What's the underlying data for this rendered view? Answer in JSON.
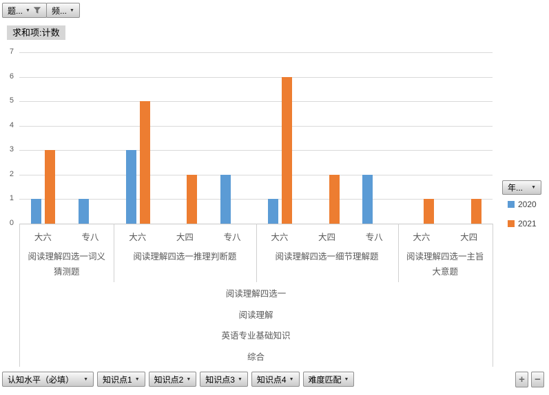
{
  "field_buttons": {
    "axis_filter_1": "题...",
    "axis_filter_2": "频...",
    "value_label": "求和项:计数",
    "legend_button": "年...",
    "bottom": [
      "认知水平（必填）",
      "知识点1",
      "知识点2",
      "知识点3",
      "知识点4",
      "难度匹配"
    ],
    "expand_label": "+",
    "collapse_label": "−"
  },
  "legend": {
    "entries": [
      {
        "label": "2020",
        "color": "#5B9BD5"
      },
      {
        "label": "2021",
        "color": "#ED7D31"
      }
    ]
  },
  "colors": {
    "series_2020": "#5B9BD5",
    "series_2021": "#ED7D31",
    "gridline": "#D9D9D9",
    "axis_text": "#595959"
  },
  "chart_data": {
    "type": "bar",
    "title": "求和项:计数",
    "xlabel": "",
    "ylabel": "",
    "ylim": [
      0,
      7
    ],
    "yticks": [
      0,
      1,
      2,
      3,
      4,
      5,
      6,
      7
    ],
    "grid": true,
    "legend_position": "right",
    "categories": [
      "大六",
      "专八",
      "大六",
      "大四",
      "专八",
      "大六",
      "大四",
      "专八",
      "大六",
      "大四"
    ],
    "series": [
      {
        "name": "2020",
        "color": "#5B9BD5",
        "values": [
          1,
          1,
          3,
          null,
          2,
          1,
          null,
          2,
          null,
          null
        ]
      },
      {
        "name": "2021",
        "color": "#ED7D31",
        "values": [
          3,
          null,
          5,
          2,
          null,
          6,
          2,
          null,
          1,
          1
        ]
      }
    ],
    "groups": [
      {
        "label": "阅读理解四选一词义猜测题",
        "span": 2
      },
      {
        "label": "阅读理解四选一推理判断题",
        "span": 3
      },
      {
        "label": "阅读理解四选一细节理解题",
        "span": 3
      },
      {
        "label": "阅读理解四选一主旨大意题",
        "span": 2
      }
    ],
    "outer_levels": [
      "阅读理解四选一",
      "阅读理解",
      "英语专业基础知识",
      "综合"
    ]
  }
}
